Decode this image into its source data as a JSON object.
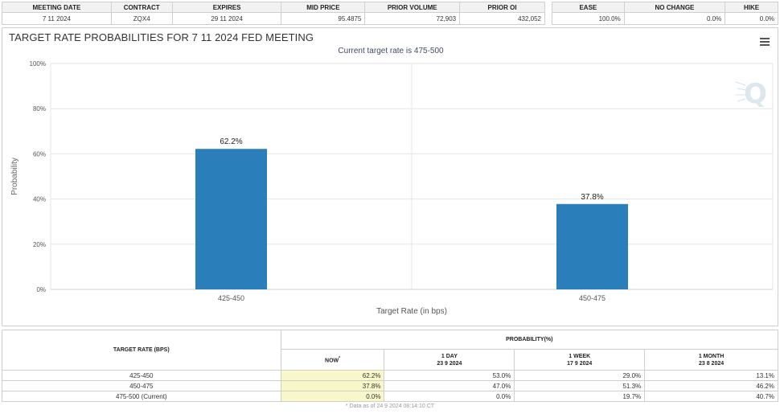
{
  "info": {
    "headers": [
      "MEETING DATE",
      "CONTRACT",
      "EXPIRES",
      "MID PRICE",
      "PRIOR VOLUME",
      "PRIOR OI"
    ],
    "values": [
      "7 11 2024",
      "ZQX4",
      "29 11 2024",
      "95.4875",
      "72,903",
      "432,052"
    ]
  },
  "moves": {
    "headers": [
      "EASE",
      "NO CHANGE",
      "HIKE"
    ],
    "values": [
      "100.0%",
      "0.0%",
      "0.0%"
    ]
  },
  "panel": {
    "title": "TARGET RATE PROBABILITIES FOR 7 11 2024 FED MEETING",
    "subtitle": "Current target rate is 475-500",
    "menu_icon": "hamburger-menu-icon",
    "watermark_icon": "q-logo-icon"
  },
  "chart_data": {
    "type": "bar",
    "categories": [
      "425-450",
      "450-475"
    ],
    "values": [
      62.2,
      37.8
    ],
    "data_labels": [
      "62.2%",
      "37.8%"
    ],
    "title": "TARGET RATE PROBABILITIES FOR 7 11 2024 FED MEETING",
    "subtitle": "Current target rate is 475-500",
    "xlabel": "Target Rate (in bps)",
    "ylabel": "Probability",
    "ylim": [
      0,
      100
    ],
    "yticks": [
      0,
      20,
      40,
      60,
      80,
      100
    ],
    "ytick_labels": [
      "0%",
      "20%",
      "40%",
      "60%",
      "80%",
      "100%"
    ],
    "grid": true,
    "legend": "none",
    "bar_color": "#2a7fba"
  },
  "prob_table": {
    "target_header": "TARGET RATE (BPS)",
    "prob_header": "PROBABILITY(%)",
    "columns": [
      {
        "line1": "NOW",
        "line2": "",
        "note": "*"
      },
      {
        "line1": "1 DAY",
        "line2": "23 9 2024",
        "note": ""
      },
      {
        "line1": "1 WEEK",
        "line2": "17 9 2024",
        "note": ""
      },
      {
        "line1": "1 MONTH",
        "line2": "23 8 2024",
        "note": ""
      }
    ],
    "rows": [
      {
        "rate": "425-450",
        "values": [
          "62.2%",
          "53.0%",
          "29.0%",
          "13.1%"
        ]
      },
      {
        "rate": "450-475",
        "values": [
          "37.8%",
          "47.0%",
          "51.3%",
          "46.2%"
        ]
      },
      {
        "rate": "475-500 (Current)",
        "values": [
          "0.0%",
          "0.0%",
          "19.7%",
          "40.7%"
        ]
      }
    ],
    "footnote": "* Data as of 24 9 2024 08:14:10 CT",
    "highlight_color": "#f7f7c9"
  }
}
